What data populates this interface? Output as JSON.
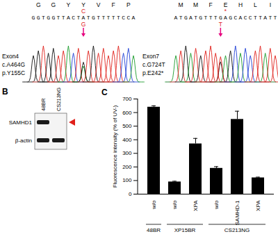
{
  "panel_a": [
    {
      "exon": "Exon4",
      "cdna": "c.A464G",
      "protein": "p.Y155C",
      "amino_acids": [
        "G",
        "G",
        "Y",
        "Y",
        "V",
        "F",
        "P"
      ],
      "mutant_amino_acid": "C",
      "sequence": "GGTGGTTACTATGTTTTTCCA",
      "mutant_base": "G"
    },
    {
      "exon": "Exon7",
      "cdna": "c.G724T",
      "protein": "p.E242*",
      "amino_acids": [
        "M",
        "M",
        "F",
        "E",
        "H",
        "L",
        "I"
      ],
      "mutant_amino_acid": "*",
      "sequence": "ATGATGTTTGAGCACCTTATT",
      "mutant_base": "T"
    }
  ],
  "panel_b": {
    "label": "B",
    "lanes": [
      "48BR",
      "CS213NG"
    ],
    "rows": [
      "SAMHD1",
      "β-actin"
    ],
    "bands": [
      [
        true,
        false
      ],
      [
        true,
        true
      ]
    ]
  },
  "panel_c_label": "C",
  "chart_data": {
    "type": "bar",
    "categories": [
      "w/o",
      "w/o",
      "XPA",
      "w/o",
      "SAMHD-1",
      "XPA"
    ],
    "groups": [
      "48BR",
      "XP15BR",
      "XP15BR",
      "CS213NG",
      "CS213NG",
      "CS213NG"
    ],
    "values": [
      640,
      90,
      370,
      190,
      550,
      120
    ],
    "errors": [
      10,
      5,
      40,
      12,
      60,
      5
    ],
    "color": "#000000",
    "ylabel": "Fluorescence intensity (% of UV-)",
    "ylim": [
      0,
      700
    ],
    "yticks": [
      0,
      100,
      200,
      300,
      400,
      500,
      600,
      700
    ]
  }
}
